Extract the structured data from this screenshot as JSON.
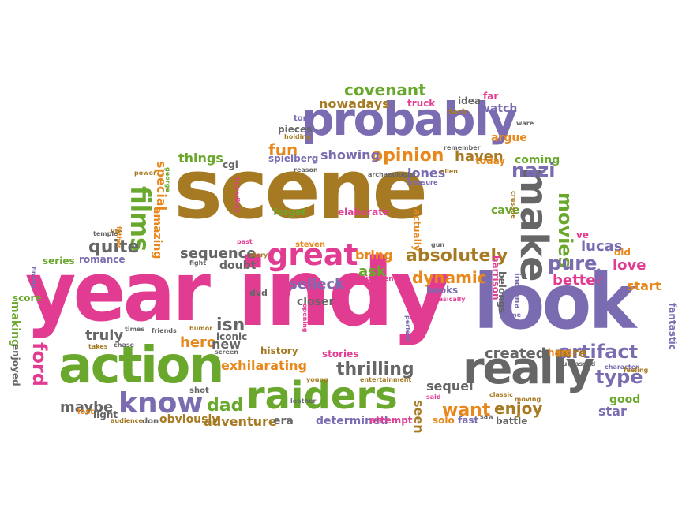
{
  "palette": {
    "pink": "#e23c92",
    "brown": "#a67a23",
    "purple": "#7b6cb2",
    "green": "#6aa82d",
    "gray": "#666666",
    "orange": "#e8871b"
  },
  "words": [
    {
      "text": "scene",
      "color": "#a67a23"
    },
    {
      "text": "indy",
      "color": "#e23c92"
    },
    {
      "text": "year",
      "color": "#e23c92"
    },
    {
      "text": "look",
      "color": "#7b6cb2"
    },
    {
      "text": "probably",
      "color": "#7b6cb2"
    },
    {
      "text": "action",
      "color": "#6aa82d"
    },
    {
      "text": "raiders",
      "color": "#6aa82d"
    },
    {
      "text": "really",
      "color": "#666666"
    },
    {
      "text": "make",
      "color": "#666666"
    },
    {
      "text": "great",
      "color": "#e23c92"
    },
    {
      "text": "know",
      "color": "#7b6cb2"
    },
    {
      "text": "films",
      "color": "#6aa82d"
    },
    {
      "text": "absolutely",
      "color": "#a67a23"
    },
    {
      "text": "opinion",
      "color": "#e8871b"
    },
    {
      "text": "covenant",
      "color": "#6aa82d"
    },
    {
      "text": "artifact",
      "color": "#7b6cb2"
    },
    {
      "text": "movies",
      "color": "#6aa82d"
    },
    {
      "text": "pure",
      "color": "#7b6cb2"
    },
    {
      "text": "thrilling",
      "color": "#666666"
    },
    {
      "text": "type",
      "color": "#7b6cb2"
    },
    {
      "text": "dynamic",
      "color": "#e8871b"
    },
    {
      "text": "nazi",
      "color": "#7b6cb2"
    },
    {
      "text": "fun",
      "color": "#e8871b"
    },
    {
      "text": "quite",
      "color": "#666666"
    },
    {
      "text": "exhilarating",
      "color": "#e8871b"
    },
    {
      "text": "hero",
      "color": "#e8871b"
    },
    {
      "text": "isn",
      "color": "#666666"
    },
    {
      "text": "ford",
      "color": "#e23c92"
    },
    {
      "text": "truly",
      "color": "#666666"
    },
    {
      "text": "want",
      "color": "#e8871b"
    },
    {
      "text": "enjoy",
      "color": "#a67a23"
    },
    {
      "text": "sequence",
      "color": "#666666"
    },
    {
      "text": "selleck",
      "color": "#7b6cb2"
    },
    {
      "text": "ask",
      "color": "#6aa82d"
    },
    {
      "text": "showing",
      "color": "#7b6cb2"
    },
    {
      "text": "haven",
      "color": "#a67a23"
    },
    {
      "text": "dad",
      "color": "#6aa82d"
    },
    {
      "text": "adventure",
      "color": "#a67a23"
    },
    {
      "text": "created",
      "color": "#666666"
    },
    {
      "text": "sure",
      "color": "#a67a23"
    },
    {
      "text": "better",
      "color": "#e23c92"
    },
    {
      "text": "love",
      "color": "#e23c92"
    },
    {
      "text": "start",
      "color": "#e8871b"
    },
    {
      "text": "lucas",
      "color": "#7b6cb2"
    },
    {
      "text": "special",
      "color": "#e8871b"
    },
    {
      "text": "amazing",
      "color": "#e8871b"
    },
    {
      "text": "things",
      "color": "#6aa82d"
    },
    {
      "text": "jones",
      "color": "#7b6cb2"
    },
    {
      "text": "bring",
      "color": "#e8871b"
    },
    {
      "text": "closer",
      "color": "#666666"
    },
    {
      "text": "sequel",
      "color": "#666666"
    },
    {
      "text": "seen",
      "color": "#a67a23"
    },
    {
      "text": "star",
      "color": "#7b6cb2"
    },
    {
      "text": "maybe",
      "color": "#666666"
    },
    {
      "text": "new",
      "color": "#666666"
    },
    {
      "text": "nowadays",
      "color": "#a67a23"
    },
    {
      "text": "watch",
      "color": "#7b6cb2"
    },
    {
      "text": "argue",
      "color": "#e8871b"
    },
    {
      "text": "coming",
      "color": "#6aa82d"
    },
    {
      "text": "today",
      "color": "#e8871b"
    },
    {
      "text": "forget",
      "color": "#6aa82d"
    },
    {
      "text": "elaborate",
      "color": "#e23c92"
    },
    {
      "text": "cave",
      "color": "#6aa82d"
    },
    {
      "text": "doubt",
      "color": "#666666"
    },
    {
      "text": "books",
      "color": "#7b6cb2"
    },
    {
      "text": "iconic",
      "color": "#666666"
    },
    {
      "text": "history",
      "color": "#a67a23"
    },
    {
      "text": "stories",
      "color": "#e23c92"
    },
    {
      "text": "determined",
      "color": "#7b6cb2"
    },
    {
      "text": "attempt",
      "color": "#e23c92"
    },
    {
      "text": "era",
      "color": "#666666"
    },
    {
      "text": "obviously",
      "color": "#a67a23"
    },
    {
      "text": "fast",
      "color": "#7b6cb2"
    },
    {
      "text": "solo",
      "color": "#e8871b"
    },
    {
      "text": "battle",
      "color": "#666666"
    },
    {
      "text": "good",
      "color": "#6aa82d"
    },
    {
      "text": "fantastic",
      "color": "#7b6cb2"
    },
    {
      "text": "making",
      "color": "#6aa82d"
    },
    {
      "text": "enjoyed",
      "color": "#666666"
    },
    {
      "text": "score",
      "color": "#6aa82d"
    },
    {
      "text": "series",
      "color": "#6aa82d"
    },
    {
      "text": "romance",
      "color": "#7b6cb2"
    },
    {
      "text": "old",
      "color": "#e8871b"
    },
    {
      "text": "ve",
      "color": "#e23c92"
    },
    {
      "text": "harrison",
      "color": "#e23c92"
    },
    {
      "text": "indiana",
      "color": "#7b6cb2"
    },
    {
      "text": "belongs",
      "color": "#666666"
    },
    {
      "text": "actually",
      "color": "#e8871b"
    },
    {
      "text": "steven",
      "color": "#e8871b"
    },
    {
      "text": "spielberg",
      "color": "#7b6cb2"
    },
    {
      "text": "pieces",
      "color": "#666666"
    },
    {
      "text": "light",
      "color": "#666666"
    },
    {
      "text": "lost",
      "color": "#e8871b"
    },
    {
      "text": "don",
      "color": "#666666"
    },
    {
      "text": "far",
      "color": "#e23c92"
    },
    {
      "text": "idea",
      "color": "#666666"
    },
    {
      "text": "truck",
      "color": "#e23c92"
    },
    {
      "text": "dark",
      "color": "#a67a23"
    },
    {
      "text": "tom",
      "color": "#7b6cb2"
    },
    {
      "text": "cgi",
      "color": "#666666"
    },
    {
      "text": "dvd",
      "color": "#666666"
    },
    {
      "text": "shot",
      "color": "#666666"
    },
    {
      "text": "excitement",
      "color": "#e23c92"
    },
    {
      "text": "entertainment",
      "color": "#a67a23"
    },
    {
      "text": "temple",
      "color": "#666666"
    },
    {
      "text": "father",
      "color": "#e8871b"
    },
    {
      "text": "power",
      "color": "#a67a23"
    },
    {
      "text": "incredible",
      "color": "#e23c92"
    },
    {
      "text": "holding",
      "color": "#a67a23"
    },
    {
      "text": "reason",
      "color": "#666666"
    },
    {
      "text": "archaeologist",
      "color": "#666666"
    },
    {
      "text": "treasure",
      "color": "#7b6cb2"
    },
    {
      "text": "allen",
      "color": "#a67a23"
    },
    {
      "text": "remember",
      "color": "#666666"
    },
    {
      "text": "ware",
      "color": "#666666"
    },
    {
      "text": "crusade",
      "color": "#a67a23"
    },
    {
      "text": "surpassed",
      "color": "#666666"
    },
    {
      "text": "character",
      "color": "#7b6cb2"
    },
    {
      "text": "feeling",
      "color": "#a67a23"
    },
    {
      "text": "completely",
      "color": "#7b6cb2"
    },
    {
      "text": "perfect",
      "color": "#7b6cb2"
    },
    {
      "text": "classic",
      "color": "#a67a23"
    },
    {
      "text": "moving",
      "color": "#a67a23"
    },
    {
      "text": "leather",
      "color": "#666666"
    },
    {
      "text": "young",
      "color": "#a67a23"
    },
    {
      "text": "opening",
      "color": "#e23c92"
    },
    {
      "text": "chase",
      "color": "#666666"
    },
    {
      "text": "takes",
      "color": "#a67a23"
    },
    {
      "text": "audience",
      "color": "#a67a23"
    },
    {
      "text": "screen",
      "color": "#666666"
    },
    {
      "text": "humor",
      "color": "#a67a23"
    },
    {
      "text": "fight",
      "color": "#666666"
    },
    {
      "text": "story",
      "color": "#a67a23"
    },
    {
      "text": "past",
      "color": "#e23c92"
    },
    {
      "text": "george",
      "color": "#6aa82d"
    },
    {
      "text": "come",
      "color": "#7b6cb2"
    },
    {
      "text": "basically",
      "color": "#e23c92"
    },
    {
      "text": "said",
      "color": "#e23c92"
    },
    {
      "text": "saw",
      "color": "#666666"
    },
    {
      "text": "gun",
      "color": "#666666"
    },
    {
      "text": "art",
      "color": "#7b6cb2"
    },
    {
      "text": "hard",
      "color": "#e8871b"
    },
    {
      "text": "finally",
      "color": "#7b6cb2"
    },
    {
      "text": "life",
      "color": "#a67a23"
    },
    {
      "text": "times",
      "color": "#666666"
    },
    {
      "text": "friends",
      "color": "#666666"
    }
  ]
}
